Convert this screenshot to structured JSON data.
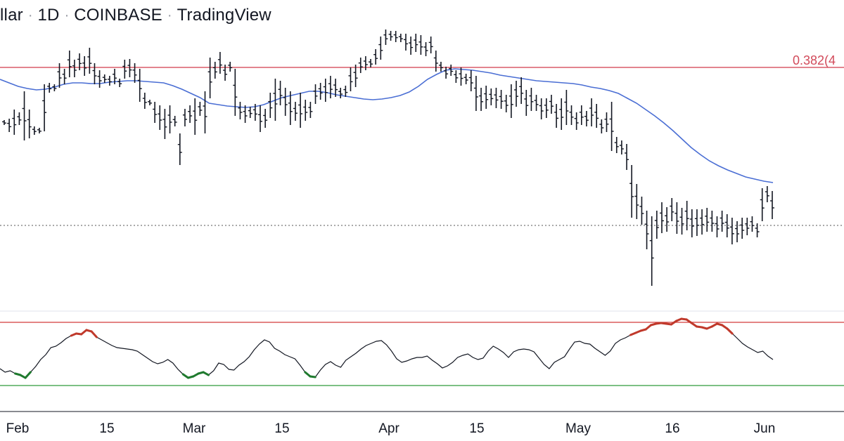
{
  "header": {
    "symbol_fragment": "llar",
    "interval": "1D",
    "exchange": "COINBASE",
    "source": "TradingView"
  },
  "colors": {
    "bars": "#131722",
    "moving_average": "#4a6ed4",
    "fib_line": "#d23a4a",
    "rsi_line": "#131722",
    "rsi_overbought": "#c0392b",
    "rsi_oversold": "#1f7a2e",
    "rsi_upper_band": "#d33b3b",
    "rsi_lower_band": "#2e9b3a",
    "dotted_level": "#555555"
  },
  "price_label": "0.382(4",
  "chart_data": [
    {
      "type": "ohlc",
      "title": "",
      "x": {
        "start": "Jan 31",
        "end": "May 31",
        "ticks": [
          "Feb",
          "15",
          "Mar",
          "15",
          "Apr",
          "15",
          "May",
          "16",
          "Jun"
        ]
      },
      "y_axis": "hidden",
      "bars_hl": [
        [
          171,
          178
        ],
        [
          169,
          188
        ],
        [
          156,
          192
        ],
        [
          160,
          178
        ],
        [
          130,
          200
        ],
        [
          156,
          197
        ],
        [
          180,
          192
        ],
        [
          182,
          190
        ],
        [
          120,
          187
        ],
        [
          118,
          132
        ],
        [
          120,
          130
        ],
        [
          90,
          125
        ],
        [
          98,
          120
        ],
        [
          72,
          110
        ],
        [
          85,
          110
        ],
        [
          76,
          100
        ],
        [
          80,
          108
        ],
        [
          68,
          105
        ],
        [
          90,
          120
        ],
        [
          100,
          125
        ],
        [
          106,
          118
        ],
        [
          108,
          122
        ],
        [
          98,
          120
        ],
        [
          112,
          124
        ],
        [
          85,
          112
        ],
        [
          84,
          110
        ],
        [
          90,
          118
        ],
        [
          98,
          145
        ],
        [
          132,
          155
        ],
        [
          142,
          150
        ],
        [
          145,
          175
        ],
        [
          150,
          185
        ],
        [
          155,
          198
        ],
        [
          150,
          190
        ],
        [
          165,
          180
        ],
        [
          190,
          235
        ],
        [
          155,
          180
        ],
        [
          150,
          175
        ],
        [
          140,
          192
        ],
        [
          145,
          165
        ],
        [
          130,
          190
        ],
        [
          82,
          140
        ],
        [
          88,
          112
        ],
        [
          74,
          105
        ],
        [
          92,
          115
        ],
        [
          88,
          102
        ],
        [
          98,
          165
        ],
        [
          145,
          170
        ],
        [
          150,
          175
        ],
        [
          152,
          168
        ],
        [
          148,
          172
        ],
        [
          150,
          188
        ],
        [
          155,
          182
        ],
        [
          132,
          168
        ],
        [
          112,
          172
        ],
        [
          115,
          150
        ],
        [
          125,
          165
        ],
        [
          130,
          178
        ],
        [
          145,
          172
        ],
        [
          132,
          182
        ],
        [
          142,
          172
        ],
        [
          145,
          168
        ],
        [
          120,
          148
        ],
        [
          118,
          142
        ],
        [
          112,
          145
        ],
        [
          108,
          140
        ],
        [
          112,
          138
        ],
        [
          125,
          140
        ],
        [
          122,
          138
        ],
        [
          96,
          130
        ],
        [
          92,
          124
        ],
        [
          82,
          104
        ],
        [
          80,
          100
        ],
        [
          84,
          96
        ],
        [
          70,
          92
        ],
        [
          52,
          85
        ],
        [
          42,
          64
        ],
        [
          44,
          58
        ],
        [
          44,
          60
        ],
        [
          48,
          60
        ],
        [
          48,
          72
        ],
        [
          52,
          78
        ],
        [
          48,
          74
        ],
        [
          50,
          78
        ],
        [
          60,
          80
        ],
        [
          52,
          76
        ],
        [
          72,
          102
        ],
        [
          88,
          102
        ],
        [
          95,
          112
        ],
        [
          92,
          108
        ],
        [
          100,
          118
        ],
        [
          96,
          122
        ],
        [
          105,
          120
        ],
        [
          100,
          130
        ],
        [
          108,
          158
        ],
        [
          125,
          158
        ],
        [
          122,
          155
        ],
        [
          126,
          150
        ],
        [
          125,
          154
        ],
        [
          128,
          155
        ],
        [
          135,
          160
        ],
        [
          120,
          168
        ],
        [
          115,
          152
        ],
        [
          110,
          148
        ],
        [
          128,
          165
        ],
        [
          125,
          158
        ],
        [
          135,
          158
        ],
        [
          140,
          170
        ],
        [
          140,
          168
        ],
        [
          135,
          162
        ],
        [
          148,
          182
        ],
        [
          140,
          185
        ],
        [
          128,
          178
        ],
        [
          150,
          178
        ],
        [
          160,
          185
        ],
        [
          150,
          178
        ],
        [
          158,
          180
        ],
        [
          140,
          180
        ],
        [
          148,
          182
        ],
        [
          170,
          190
        ],
        [
          160,
          188
        ],
        [
          145,
          215
        ],
        [
          195,
          218
        ],
        [
          200,
          220
        ],
        [
          205,
          242
        ],
        [
          235,
          310
        ],
        [
          262,
          312
        ],
        [
          280,
          320
        ],
        [
          300,
          355
        ],
        [
          308,
          407
        ],
        [
          300,
          340
        ],
        [
          288,
          332
        ],
        [
          295,
          330
        ],
        [
          282,
          315
        ],
        [
          288,
          333
        ],
        [
          296,
          334
        ],
        [
          286,
          328
        ],
        [
          298,
          338
        ],
        [
          298,
          336
        ],
        [
          298,
          334
        ],
        [
          296,
          330
        ],
        [
          300,
          330
        ],
        [
          308,
          338
        ],
        [
          300,
          330
        ],
        [
          305,
          338
        ],
        [
          310,
          348
        ],
        [
          315,
          345
        ],
        [
          310,
          340
        ],
        [
          310,
          335
        ],
        [
          308,
          330
        ],
        [
          318,
          338
        ],
        [
          268,
          315
        ],
        [
          265,
          288
        ],
        [
          272,
          312
        ]
      ],
      "ticks_open_close": "open tick left, close tick right of each bar",
      "moving_average": [
        113,
        118,
        123,
        126,
        128,
        127,
        124,
        120,
        118,
        118,
        119,
        119,
        117,
        116,
        115,
        115,
        116,
        117,
        118,
        122,
        127,
        133,
        139,
        147,
        149,
        151,
        152,
        153,
        152,
        149,
        144,
        139,
        136,
        133,
        130,
        130,
        132,
        135,
        137,
        139,
        141,
        142,
        141,
        139,
        136,
        131,
        123,
        113,
        106,
        100,
        98,
        99,
        100,
        102,
        104,
        107,
        109,
        111,
        113,
        115,
        116,
        117,
        118,
        119,
        121,
        124,
        126,
        129,
        133,
        140,
        147,
        156,
        165,
        175,
        186,
        198,
        210,
        220,
        229,
        236,
        242,
        247,
        252,
        255,
        258,
        260
      ],
      "horizontal_lines": [
        {
          "name": "fib-0.382",
          "price_label": "0.382(4",
          "style": "solid"
        },
        {
          "name": "dotted-level",
          "style": "dotted"
        }
      ]
    },
    {
      "type": "line",
      "title": "",
      "indicator": "oscillator",
      "bands": [
        "upper",
        "lower"
      ],
      "values": [
        525,
        530,
        528,
        532,
        534,
        538,
        530,
        522,
        512,
        505,
        495,
        493,
        488,
        482,
        478,
        475,
        476,
        470,
        472,
        480,
        484,
        488,
        492,
        495,
        496,
        497,
        498,
        500,
        505,
        510,
        515,
        518,
        516,
        512,
        517,
        526,
        533,
        538,
        536,
        532,
        530,
        534,
        528,
        517,
        519,
        526,
        527,
        520,
        515,
        508,
        498,
        490,
        484,
        487,
        496,
        500,
        505,
        508,
        511,
        520,
        530,
        536,
        537,
        527,
        519,
        515,
        520,
        523,
        513,
        508,
        503,
        497,
        492,
        489,
        486,
        485,
        491,
        500,
        511,
        516,
        514,
        511,
        509,
        509,
        507,
        513,
        518,
        524,
        521,
        516,
        509,
        506,
        504,
        509,
        512,
        510,
        500,
        493,
        497,
        502,
        509,
        501,
        498,
        497,
        498,
        501,
        510,
        519,
        525,
        516,
        512,
        508,
        497,
        487,
        486,
        489,
        490,
        496,
        501,
        506,
        500,
        489,
        484,
        481,
        477,
        474,
        471,
        469,
        463,
        461,
        460,
        461,
        462,
        457,
        454,
        455,
        460,
        465,
        466,
        468,
        465,
        461,
        463,
        468,
        475,
        482,
        489,
        494,
        498,
        502,
        500,
        507,
        512
      ]
    }
  ]
}
